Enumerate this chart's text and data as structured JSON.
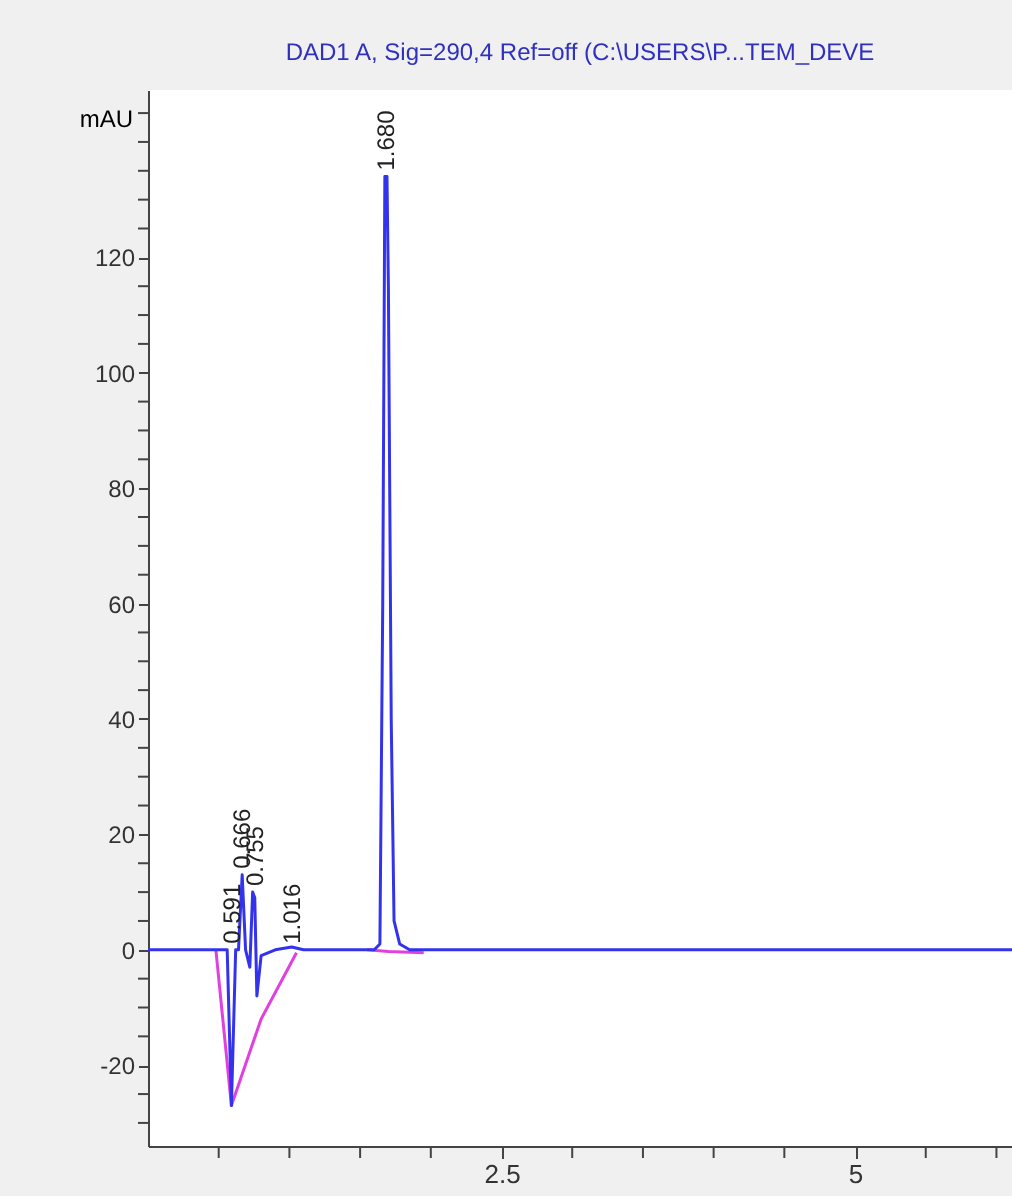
{
  "chart_data": {
    "type": "line",
    "title": "DAD1 A, Sig=290,4 Ref=off (C:\\USERS\\P...TEM_DEVE",
    "ylabel": "mAU",
    "xlim": [
      0,
      6.11
    ],
    "ylim": [
      -34,
      149
    ],
    "xticks": [
      {
        "value": 0.5,
        "label": null
      },
      {
        "value": 1,
        "label": null
      },
      {
        "value": 1.5,
        "label": null
      },
      {
        "value": 2,
        "label": null
      },
      2.5,
      {
        "value": 3,
        "label": null
      },
      {
        "value": 3.5,
        "label": null
      },
      {
        "value": 4,
        "label": null
      },
      {
        "value": 4.5,
        "label": null
      },
      5,
      {
        "value": 5.5,
        "label": null
      },
      {
        "value": 6,
        "label": null
      }
    ],
    "yticks": [
      {
        "value": -30,
        "label": null
      },
      {
        "value": -25,
        "label": null
      },
      -20,
      {
        "value": -15,
        "label": null
      },
      {
        "value": -10,
        "label": null
      },
      {
        "value": -5,
        "label": null
      },
      0,
      {
        "value": 5,
        "label": null
      },
      {
        "value": 10,
        "label": null
      },
      {
        "value": 15,
        "label": null
      },
      20,
      {
        "value": 25,
        "label": null
      },
      {
        "value": 30,
        "label": null
      },
      {
        "value": 35,
        "label": null
      },
      40,
      {
        "value": 45,
        "label": null
      },
      {
        "value": 50,
        "label": null
      },
      {
        "value": 55,
        "label": null
      },
      60,
      {
        "value": 65,
        "label": null
      },
      {
        "value": 70,
        "label": null
      },
      {
        "value": 75,
        "label": null
      },
      80,
      {
        "value": 85,
        "label": null
      },
      {
        "value": 90,
        "label": null
      },
      {
        "value": 95,
        "label": null
      },
      100,
      {
        "value": 105,
        "label": null
      },
      {
        "value": 110,
        "label": null
      },
      {
        "value": 115,
        "label": null
      },
      120,
      {
        "value": 125,
        "label": null
      },
      {
        "value": 130,
        "label": null
      },
      {
        "value": 135,
        "label": null
      },
      {
        "value": 140,
        "label": null
      },
      {
        "value": 145,
        "label": null
      }
    ],
    "grid": false,
    "marker": "none",
    "line_style": "solid",
    "series": [
      {
        "color": "#3333ee",
        "x": [
          0,
          0.5,
          0.56,
          0.59,
          0.62,
          0.64,
          0.666,
          0.69,
          0.72,
          0.74,
          0.755,
          0.77,
          0.8,
          0.9,
          1.016,
          1.1,
          1.5,
          1.6,
          1.64,
          1.66,
          1.675,
          1.69,
          1.7,
          1.72,
          1.74,
          1.78,
          1.85,
          6.11
        ],
        "values": [
          0,
          0,
          0,
          -27,
          0,
          0,
          13,
          0,
          -3,
          10,
          9,
          -8,
          -1,
          0,
          0.5,
          0,
          0,
          0,
          1,
          60,
          134,
          134,
          115,
          40,
          5,
          1,
          0,
          0
        ]
      },
      {
        "color": "#e040e0",
        "x": [
          0.48,
          0.59,
          0.8,
          1.05
        ],
        "values": [
          0,
          -27,
          -12,
          -0.5
        ]
      },
      {
        "color": "#e040e0",
        "x": [
          1.55,
          1.7,
          1.95
        ],
        "values": [
          0,
          -0.3,
          -0.5
        ]
      }
    ],
    "annotations": [
      {
        "text": "0.591",
        "x": 0.591,
        "y": 0
      },
      {
        "text": "0.666",
        "x": 0.666,
        "y": 13
      },
      {
        "text": "0.755",
        "x": 0.755,
        "y": 10
      },
      {
        "text": "1.016",
        "x": 1.016,
        "y": 0
      },
      {
        "text": "1.680",
        "x": 1.68,
        "y": 134
      }
    ]
  }
}
